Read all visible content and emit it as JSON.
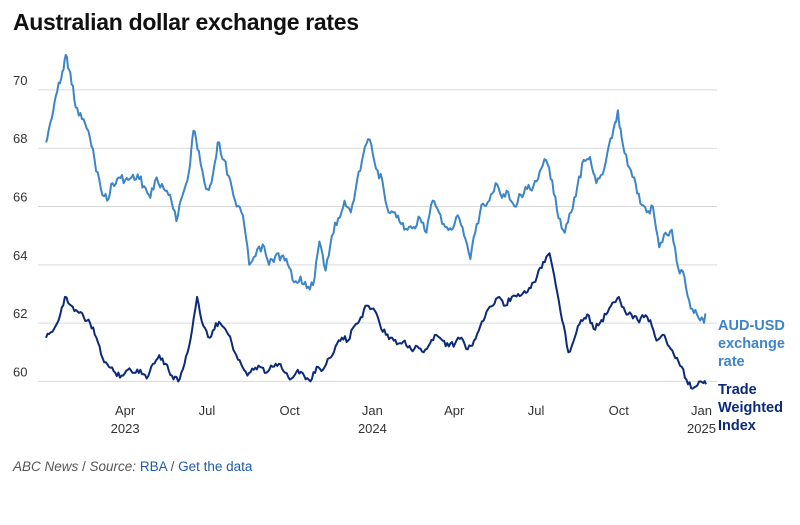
{
  "title": "Australian dollar exchange rates",
  "source": {
    "publisher": "ABC News",
    "sep1": " / ",
    "source_label": "Source:",
    "source_name": "RBA",
    "sep2": " / ",
    "link_text": "Get the data"
  },
  "colors": {
    "aud_usd": "#3d85c6",
    "twi": "#0b2a78",
    "grid": "#d9d9d9"
  },
  "chart_data": {
    "type": "line",
    "title": "Australian dollar exchange rates",
    "xlabel": "",
    "ylabel": "",
    "ylim": [
      59.5,
      71.3
    ],
    "xlim": [
      "2023-01-03",
      "2025-01-06"
    ],
    "yticks": [
      60,
      62,
      64,
      66,
      68,
      70
    ],
    "xticks": [
      {
        "date": "2023-04-01",
        "label": "Apr",
        "year": "2023"
      },
      {
        "date": "2023-07-01",
        "label": "Jul",
        "year": ""
      },
      {
        "date": "2023-10-01",
        "label": "Oct",
        "year": ""
      },
      {
        "date": "2024-01-01",
        "label": "Jan",
        "year": "2024"
      },
      {
        "date": "2024-04-01",
        "label": "Apr",
        "year": ""
      },
      {
        "date": "2024-07-01",
        "label": "Jul",
        "year": ""
      },
      {
        "date": "2024-10-01",
        "label": "Oct",
        "year": ""
      },
      {
        "date": "2025-01-01",
        "label": "Jan",
        "year": "2025"
      }
    ],
    "grid": true,
    "legend": "direct labels at right end of lines",
    "series": [
      {
        "name": "AUD-USD exchange rate",
        "label_lines": [
          "AUD-USD",
          "exchange",
          "rate"
        ],
        "color": "#3d85c6",
        "points": [
          [
            "2023-01-03",
            68.2
          ],
          [
            "2023-01-08",
            68.9
          ],
          [
            "2023-01-14",
            69.8
          ],
          [
            "2023-01-20",
            70.4
          ],
          [
            "2023-01-25",
            71.2
          ],
          [
            "2023-01-30",
            70.6
          ],
          [
            "2023-02-05",
            69.4
          ],
          [
            "2023-02-12",
            69.0
          ],
          [
            "2023-02-19",
            68.6
          ],
          [
            "2023-02-26",
            67.6
          ],
          [
            "2023-03-05",
            66.6
          ],
          [
            "2023-03-12",
            66.2
          ],
          [
            "2023-03-18",
            66.8
          ],
          [
            "2023-03-25",
            67.0
          ],
          [
            "2023-04-01",
            66.9
          ],
          [
            "2023-04-08",
            67.0
          ],
          [
            "2023-04-15",
            67.1
          ],
          [
            "2023-04-22",
            66.7
          ],
          [
            "2023-04-29",
            66.3
          ],
          [
            "2023-05-06",
            67.0
          ],
          [
            "2023-05-14",
            66.6
          ],
          [
            "2023-05-21",
            66.4
          ],
          [
            "2023-05-28",
            65.5
          ],
          [
            "2023-06-04",
            66.4
          ],
          [
            "2023-06-11",
            67.2
          ],
          [
            "2023-06-16",
            68.6
          ],
          [
            "2023-06-22",
            67.9
          ],
          [
            "2023-06-30",
            66.6
          ],
          [
            "2023-07-06",
            66.8
          ],
          [
            "2023-07-13",
            68.2
          ],
          [
            "2023-07-20",
            67.6
          ],
          [
            "2023-07-27",
            66.9
          ],
          [
            "2023-08-03",
            66.0
          ],
          [
            "2023-08-10",
            65.7
          ],
          [
            "2023-08-17",
            64.0
          ],
          [
            "2023-08-24",
            64.3
          ],
          [
            "2023-09-01",
            64.7
          ],
          [
            "2023-09-08",
            64.0
          ],
          [
            "2023-09-15",
            64.3
          ],
          [
            "2023-09-22",
            64.3
          ],
          [
            "2023-09-29",
            64.0
          ],
          [
            "2023-10-06",
            63.4
          ],
          [
            "2023-10-13",
            63.6
          ],
          [
            "2023-10-20",
            63.2
          ],
          [
            "2023-10-27",
            63.3
          ],
          [
            "2023-11-03",
            64.8
          ],
          [
            "2023-11-10",
            63.8
          ],
          [
            "2023-11-17",
            65.0
          ],
          [
            "2023-11-24",
            65.6
          ],
          [
            "2023-12-01",
            66.2
          ],
          [
            "2023-12-08",
            65.8
          ],
          [
            "2023-12-15",
            66.9
          ],
          [
            "2023-12-22",
            67.8
          ],
          [
            "2023-12-29",
            68.3
          ],
          [
            "2024-01-05",
            67.3
          ],
          [
            "2024-01-12",
            66.9
          ],
          [
            "2024-01-19",
            65.8
          ],
          [
            "2024-01-26",
            65.8
          ],
          [
            "2024-02-02",
            65.4
          ],
          [
            "2024-02-09",
            65.2
          ],
          [
            "2024-02-16",
            65.3
          ],
          [
            "2024-02-23",
            65.6
          ],
          [
            "2024-03-01",
            65.1
          ],
          [
            "2024-03-08",
            66.2
          ],
          [
            "2024-03-15",
            65.8
          ],
          [
            "2024-03-22",
            65.3
          ],
          [
            "2024-03-29",
            65.2
          ],
          [
            "2024-04-05",
            65.7
          ],
          [
            "2024-04-12",
            65.0
          ],
          [
            "2024-04-19",
            64.2
          ],
          [
            "2024-04-26",
            65.4
          ],
          [
            "2024-05-03",
            66.1
          ],
          [
            "2024-05-10",
            66.2
          ],
          [
            "2024-05-17",
            66.8
          ],
          [
            "2024-05-24",
            66.3
          ],
          [
            "2024-05-31",
            66.5
          ],
          [
            "2024-06-07",
            66.0
          ],
          [
            "2024-06-14",
            66.4
          ],
          [
            "2024-06-21",
            66.6
          ],
          [
            "2024-06-28",
            66.7
          ],
          [
            "2024-07-05",
            67.2
          ],
          [
            "2024-07-12",
            67.6
          ],
          [
            "2024-07-19",
            66.9
          ],
          [
            "2024-07-26",
            65.6
          ],
          [
            "2024-08-02",
            65.1
          ],
          [
            "2024-08-09",
            65.8
          ],
          [
            "2024-08-16",
            66.7
          ],
          [
            "2024-08-23",
            67.6
          ],
          [
            "2024-08-30",
            67.7
          ],
          [
            "2024-09-06",
            66.8
          ],
          [
            "2024-09-13",
            67.1
          ],
          [
            "2024-09-20",
            68.1
          ],
          [
            "2024-09-27",
            68.9
          ],
          [
            "2024-09-30",
            69.3
          ],
          [
            "2024-10-04",
            68.4
          ],
          [
            "2024-10-11",
            67.4
          ],
          [
            "2024-10-18",
            67.0
          ],
          [
            "2024-10-25",
            66.1
          ],
          [
            "2024-11-01",
            65.8
          ],
          [
            "2024-11-08",
            66.0
          ],
          [
            "2024-11-15",
            64.6
          ],
          [
            "2024-11-22",
            65.1
          ],
          [
            "2024-11-29",
            65.2
          ],
          [
            "2024-12-06",
            63.9
          ],
          [
            "2024-12-13",
            63.6
          ],
          [
            "2024-12-20",
            62.5
          ],
          [
            "2024-12-27",
            62.3
          ],
          [
            "2025-01-03",
            62.1
          ],
          [
            "2025-01-06",
            62.3
          ]
        ]
      },
      {
        "name": "Trade Weighted Index",
        "label_lines": [
          "Trade",
          "Weighted",
          "Index"
        ],
        "color": "#0b2a78",
        "points": [
          [
            "2023-01-03",
            61.5
          ],
          [
            "2023-01-10",
            61.7
          ],
          [
            "2023-01-17",
            62.1
          ],
          [
            "2023-01-24",
            62.9
          ],
          [
            "2023-01-31",
            62.6
          ],
          [
            "2023-02-07",
            62.4
          ],
          [
            "2023-02-14",
            62.2
          ],
          [
            "2023-02-21",
            62.0
          ],
          [
            "2023-02-28",
            61.5
          ],
          [
            "2023-03-07",
            60.8
          ],
          [
            "2023-03-14",
            60.5
          ],
          [
            "2023-03-21",
            60.3
          ],
          [
            "2023-03-28",
            60.2
          ],
          [
            "2023-04-04",
            60.4
          ],
          [
            "2023-04-11",
            60.3
          ],
          [
            "2023-04-18",
            60.4
          ],
          [
            "2023-04-25",
            60.1
          ],
          [
            "2023-05-02",
            60.6
          ],
          [
            "2023-05-09",
            60.9
          ],
          [
            "2023-05-16",
            60.6
          ],
          [
            "2023-05-23",
            60.2
          ],
          [
            "2023-05-30",
            60.0
          ],
          [
            "2023-06-06",
            60.6
          ],
          [
            "2023-06-13",
            61.5
          ],
          [
            "2023-06-20",
            62.9
          ],
          [
            "2023-06-27",
            61.9
          ],
          [
            "2023-07-04",
            61.5
          ],
          [
            "2023-07-11",
            62.0
          ],
          [
            "2023-07-18",
            61.9
          ],
          [
            "2023-07-25",
            61.6
          ],
          [
            "2023-08-01",
            61.0
          ],
          [
            "2023-08-08",
            60.6
          ],
          [
            "2023-08-15",
            60.2
          ],
          [
            "2023-08-22",
            60.4
          ],
          [
            "2023-08-29",
            60.5
          ],
          [
            "2023-09-05",
            60.3
          ],
          [
            "2023-09-12",
            60.5
          ],
          [
            "2023-09-19",
            60.6
          ],
          [
            "2023-09-26",
            60.3
          ],
          [
            "2023-10-03",
            60.1
          ],
          [
            "2023-10-10",
            60.4
          ],
          [
            "2023-10-17",
            60.2
          ],
          [
            "2023-10-24",
            60.0
          ],
          [
            "2023-10-31",
            60.5
          ],
          [
            "2023-11-07",
            60.4
          ],
          [
            "2023-11-14",
            60.8
          ],
          [
            "2023-11-21",
            61.2
          ],
          [
            "2023-11-28",
            61.5
          ],
          [
            "2023-12-05",
            61.4
          ],
          [
            "2023-12-12",
            61.9
          ],
          [
            "2023-12-19",
            62.2
          ],
          [
            "2023-12-26",
            62.6
          ],
          [
            "2024-01-02",
            62.5
          ],
          [
            "2024-01-09",
            62.0
          ],
          [
            "2024-01-16",
            61.6
          ],
          [
            "2024-01-23",
            61.5
          ],
          [
            "2024-01-30",
            61.3
          ],
          [
            "2024-02-06",
            61.4
          ],
          [
            "2024-02-13",
            61.1
          ],
          [
            "2024-02-20",
            61.2
          ],
          [
            "2024-02-27",
            61.0
          ],
          [
            "2024-03-05",
            61.3
          ],
          [
            "2024-03-12",
            61.6
          ],
          [
            "2024-03-19",
            61.4
          ],
          [
            "2024-03-26",
            61.2
          ],
          [
            "2024-04-02",
            61.3
          ],
          [
            "2024-04-09",
            61.5
          ],
          [
            "2024-04-16",
            61.1
          ],
          [
            "2024-04-23",
            61.4
          ],
          [
            "2024-04-30",
            61.9
          ],
          [
            "2024-05-07",
            62.4
          ],
          [
            "2024-05-14",
            62.6
          ],
          [
            "2024-05-21",
            62.9
          ],
          [
            "2024-05-28",
            62.6
          ],
          [
            "2024-06-04",
            62.9
          ],
          [
            "2024-06-11",
            63.0
          ],
          [
            "2024-06-18",
            63.1
          ],
          [
            "2024-06-25",
            63.2
          ],
          [
            "2024-07-02",
            63.6
          ],
          [
            "2024-07-09",
            64.1
          ],
          [
            "2024-07-16",
            64.4
          ],
          [
            "2024-07-23",
            63.3
          ],
          [
            "2024-07-30",
            62.1
          ],
          [
            "2024-08-06",
            61.0
          ],
          [
            "2024-08-13",
            61.5
          ],
          [
            "2024-08-20",
            62.1
          ],
          [
            "2024-08-27",
            62.3
          ],
          [
            "2024-09-03",
            61.8
          ],
          [
            "2024-09-10",
            62.0
          ],
          [
            "2024-09-17",
            62.3
          ],
          [
            "2024-09-24",
            62.7
          ],
          [
            "2024-10-01",
            62.9
          ],
          [
            "2024-10-08",
            62.4
          ],
          [
            "2024-10-15",
            62.3
          ],
          [
            "2024-10-22",
            62.1
          ],
          [
            "2024-10-29",
            62.2
          ],
          [
            "2024-11-05",
            62.1
          ],
          [
            "2024-11-12",
            61.4
          ],
          [
            "2024-11-19",
            61.6
          ],
          [
            "2024-11-26",
            61.2
          ],
          [
            "2024-12-03",
            60.8
          ],
          [
            "2024-12-10",
            60.5
          ],
          [
            "2024-12-17",
            59.9
          ],
          [
            "2024-12-24",
            59.8
          ],
          [
            "2024-12-31",
            60.0
          ],
          [
            "2025-01-06",
            59.9
          ]
        ]
      }
    ]
  }
}
